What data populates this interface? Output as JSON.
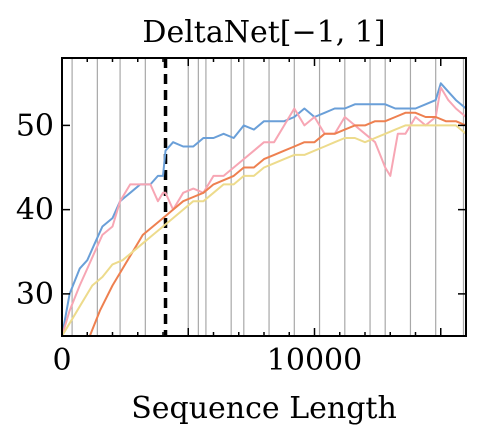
{
  "chart_data": {
    "type": "line",
    "title": "DeltaNet[−1, 1]",
    "xlabel": "Sequence Length",
    "ylabel": "",
    "xlim": [
      0,
      16000
    ],
    "ylim": [
      25,
      58
    ],
    "xticks": [
      0,
      10000
    ],
    "xtick_labels": [
      "0",
      "10000"
    ],
    "yticks": [
      30,
      40,
      50
    ],
    "ytick_labels": [
      "30",
      "40",
      "50"
    ],
    "grid": false,
    "legend": "none",
    "reference_lines": {
      "dashed_x": 4100,
      "thin_x": [
        400,
        1400,
        2300,
        3300,
        5000,
        5400,
        5700,
        6700,
        7200,
        8200,
        9200,
        10200,
        11200,
        12200,
        12800,
        13800,
        14800,
        15900
      ]
    },
    "series": [
      {
        "color": "#6a9fd8",
        "points": [
          [
            0,
            25
          ],
          [
            300,
            30
          ],
          [
            700,
            33
          ],
          [
            1000,
            34
          ],
          [
            1300,
            36
          ],
          [
            1600,
            38
          ],
          [
            2000,
            39
          ],
          [
            2300,
            41
          ],
          [
            2700,
            42
          ],
          [
            3100,
            43
          ],
          [
            3500,
            43
          ],
          [
            3800,
            44
          ],
          [
            4000,
            44
          ],
          [
            4100,
            47
          ],
          [
            4400,
            48
          ],
          [
            4800,
            47.5
          ],
          [
            5200,
            47.5
          ],
          [
            5600,
            48.5
          ],
          [
            6000,
            48.5
          ],
          [
            6400,
            49
          ],
          [
            6800,
            48.5
          ],
          [
            7200,
            50
          ],
          [
            7600,
            49.5
          ],
          [
            8000,
            50.5
          ],
          [
            8400,
            50.5
          ],
          [
            8800,
            50.5
          ],
          [
            9200,
            51
          ],
          [
            9600,
            52
          ],
          [
            10000,
            51
          ],
          [
            10400,
            51.5
          ],
          [
            10800,
            52
          ],
          [
            11200,
            52
          ],
          [
            11600,
            52.5
          ],
          [
            12000,
            52.5
          ],
          [
            12400,
            52.5
          ],
          [
            12800,
            52.5
          ],
          [
            13200,
            52
          ],
          [
            13600,
            52
          ],
          [
            14000,
            52
          ],
          [
            14400,
            52.5
          ],
          [
            14800,
            53
          ],
          [
            15000,
            55
          ],
          [
            15300,
            54
          ],
          [
            15600,
            53
          ],
          [
            16000,
            52
          ]
        ]
      },
      {
        "color": "#f7a6b4",
        "points": [
          [
            0,
            25
          ],
          [
            300,
            28
          ],
          [
            700,
            31
          ],
          [
            1000,
            33
          ],
          [
            1300,
            35
          ],
          [
            1600,
            37
          ],
          [
            2000,
            38
          ],
          [
            2300,
            41
          ],
          [
            2700,
            43
          ],
          [
            3100,
            43
          ],
          [
            3500,
            43
          ],
          [
            3800,
            41
          ],
          [
            4000,
            42
          ],
          [
            4100,
            42
          ],
          [
            4400,
            40
          ],
          [
            4800,
            42
          ],
          [
            5200,
            42.5
          ],
          [
            5600,
            42
          ],
          [
            6000,
            44
          ],
          [
            6400,
            44
          ],
          [
            6800,
            45
          ],
          [
            7200,
            46
          ],
          [
            7600,
            47
          ],
          [
            8000,
            48
          ],
          [
            8400,
            48
          ],
          [
            8800,
            50
          ],
          [
            9200,
            52
          ],
          [
            9600,
            50
          ],
          [
            10000,
            51
          ],
          [
            10400,
            49
          ],
          [
            10800,
            49
          ],
          [
            11200,
            51
          ],
          [
            11600,
            50
          ],
          [
            12000,
            49
          ],
          [
            12400,
            48
          ],
          [
            12800,
            45
          ],
          [
            13000,
            44
          ],
          [
            13300,
            49
          ],
          [
            13600,
            49
          ],
          [
            14000,
            51
          ],
          [
            14400,
            50
          ],
          [
            14800,
            51
          ],
          [
            15000,
            54.5
          ],
          [
            15300,
            53
          ],
          [
            15600,
            52
          ],
          [
            16000,
            51
          ]
        ]
      },
      {
        "color": "#ee8050",
        "points": [
          [
            1100,
            25
          ],
          [
            1500,
            28
          ],
          [
            2000,
            31
          ],
          [
            2400,
            33
          ],
          [
            2800,
            35
          ],
          [
            3200,
            37
          ],
          [
            3600,
            38
          ],
          [
            4000,
            39
          ],
          [
            4400,
            40
          ],
          [
            4800,
            41
          ],
          [
            5200,
            41.5
          ],
          [
            5600,
            42
          ],
          [
            6000,
            43
          ],
          [
            6400,
            43.5
          ],
          [
            6800,
            44
          ],
          [
            7200,
            45
          ],
          [
            7600,
            45
          ],
          [
            8000,
            46
          ],
          [
            8400,
            46.5
          ],
          [
            8800,
            47
          ],
          [
            9200,
            47.5
          ],
          [
            9600,
            48
          ],
          [
            10000,
            48
          ],
          [
            10400,
            49
          ],
          [
            10800,
            49
          ],
          [
            11200,
            49.5
          ],
          [
            11600,
            50
          ],
          [
            12000,
            50
          ],
          [
            12400,
            50.5
          ],
          [
            12800,
            50.5
          ],
          [
            13200,
            51
          ],
          [
            13600,
            51.5
          ],
          [
            14000,
            51.5
          ],
          [
            14400,
            51
          ],
          [
            14800,
            51
          ],
          [
            15200,
            50.5
          ],
          [
            15600,
            50.5
          ],
          [
            16000,
            50
          ]
        ]
      },
      {
        "color": "#eddb8c",
        "points": [
          [
            0,
            25
          ],
          [
            400,
            27
          ],
          [
            800,
            29
          ],
          [
            1200,
            31
          ],
          [
            1600,
            32
          ],
          [
            2000,
            33.5
          ],
          [
            2400,
            34
          ],
          [
            2800,
            35
          ],
          [
            3200,
            36
          ],
          [
            3600,
            37
          ],
          [
            4000,
            38
          ],
          [
            4400,
            39
          ],
          [
            4800,
            40
          ],
          [
            5200,
            41
          ],
          [
            5600,
            41
          ],
          [
            6000,
            42
          ],
          [
            6400,
            43
          ],
          [
            6800,
            43
          ],
          [
            7200,
            44
          ],
          [
            7600,
            44
          ],
          [
            8000,
            45
          ],
          [
            8400,
            45.5
          ],
          [
            8800,
            46
          ],
          [
            9200,
            46.5
          ],
          [
            9600,
            46.5
          ],
          [
            10000,
            47
          ],
          [
            10400,
            47.5
          ],
          [
            10800,
            48
          ],
          [
            11200,
            48.5
          ],
          [
            11600,
            48.5
          ],
          [
            12000,
            48
          ],
          [
            12400,
            48.5
          ],
          [
            12800,
            49
          ],
          [
            13200,
            49.5
          ],
          [
            13600,
            50
          ],
          [
            14000,
            50
          ],
          [
            14400,
            50
          ],
          [
            14800,
            50
          ],
          [
            15200,
            50
          ],
          [
            15600,
            50
          ],
          [
            16000,
            49
          ]
        ]
      }
    ]
  }
}
